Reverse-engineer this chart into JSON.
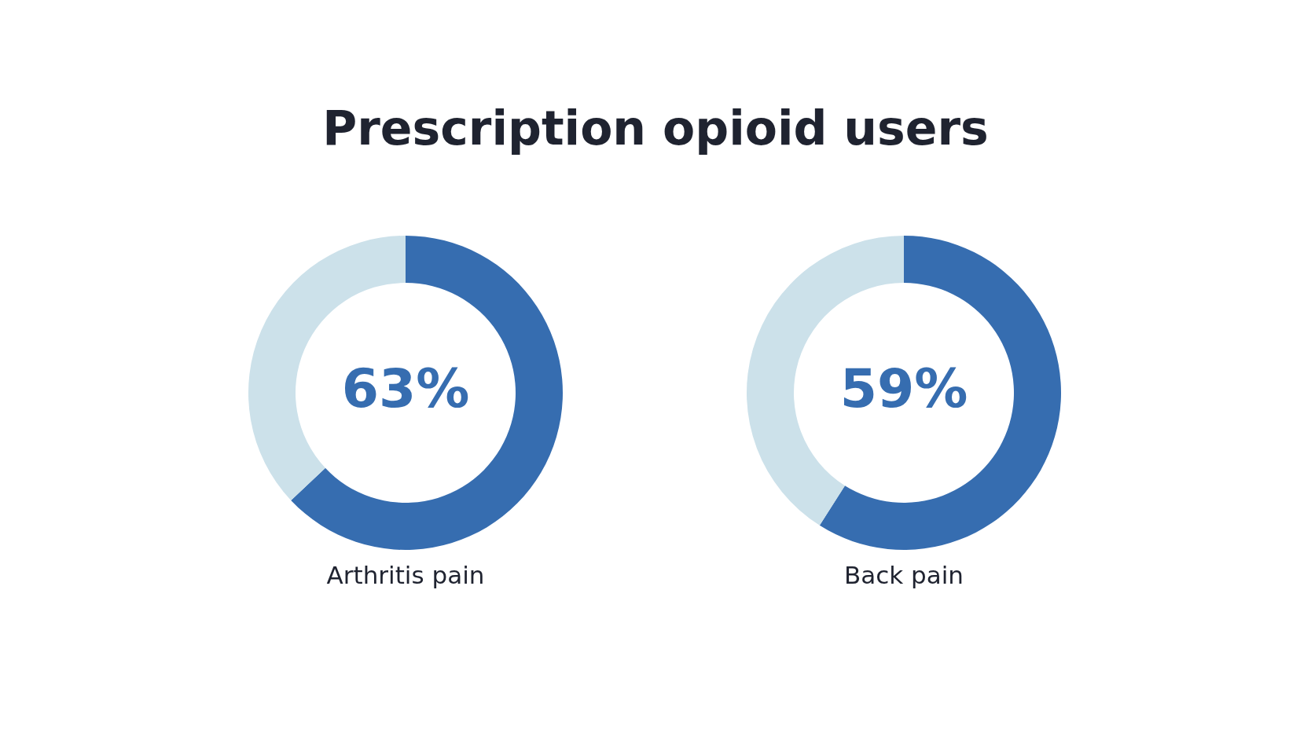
{
  "chart_data": [
    {
      "type": "donut",
      "title": "Prescription opioid users",
      "xlabel": "Arthritis pain",
      "categories": [
        null,
        null
      ],
      "values": [
        63,
        37
      ],
      "colors": [
        "#366db0",
        "#cce1ea"
      ],
      "value_labels": [
        "63%",
        null
      ]
    },
    {
      "type": "donut",
      "xlabel": "Back pain",
      "categories": [
        null,
        null
      ],
      "values": [
        59,
        41
      ],
      "colors": [
        "#366db0",
        "#cce1ea"
      ],
      "value_labels": [
        "59%",
        null
      ]
    }
  ]
}
